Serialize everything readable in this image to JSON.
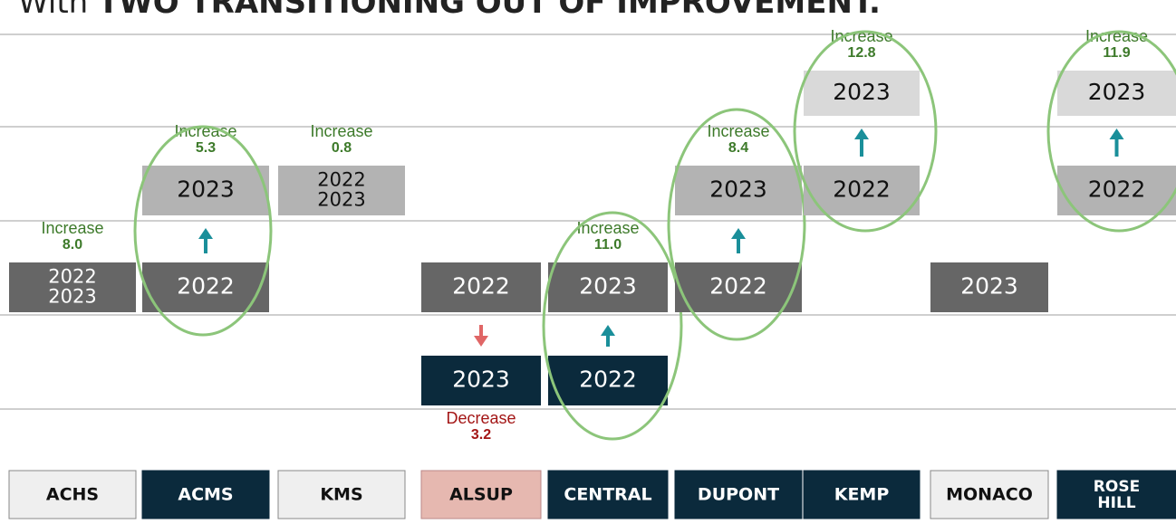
{
  "title": {
    "lead": "With",
    "bold": "TWO TRANSITIONING OUT OF IMPROVEMENT."
  },
  "schools": [
    {
      "name": "ACHS",
      "boxes": [
        [
          "2022",
          "2023"
        ]
      ],
      "change": {
        "label": "Increase",
        "value": "8.0"
      }
    },
    {
      "name": "ACMS",
      "boxes": [
        [
          "2023"
        ],
        [
          "2022"
        ]
      ],
      "change": {
        "label": "Increase",
        "value": "5.3"
      }
    },
    {
      "name": "KMS",
      "boxes": [
        [
          "2022",
          "2023"
        ]
      ],
      "change": {
        "label": "Increase",
        "value": "0.8"
      }
    },
    {
      "name": "ALSUP",
      "boxes": [
        [
          "2022"
        ],
        [
          "2023"
        ]
      ],
      "change": {
        "label": "Decrease",
        "value": "3.2"
      }
    },
    {
      "name": "CENTRAL",
      "boxes": [
        [
          "2023"
        ],
        [
          "2022"
        ]
      ],
      "change": {
        "label": "Increase",
        "value": "11.0"
      }
    },
    {
      "name": "DUPONT",
      "boxes": [
        [
          "2023"
        ],
        [
          "2022"
        ]
      ],
      "change": {
        "label": "Increase",
        "value": "8.4"
      }
    },
    {
      "name": "KEMP",
      "boxes": [
        [
          "2023"
        ],
        [
          "2022"
        ]
      ],
      "change": {
        "label": "Increase",
        "value": "12.8"
      }
    },
    {
      "name": "MONACO",
      "boxes": [
        [
          "2023"
        ]
      ]
    },
    {
      "name": [
        "ROSE",
        "HILL"
      ],
      "boxes": [
        [
          "2023"
        ],
        [
          "2022"
        ]
      ],
      "change": {
        "label": "Increase",
        "value": "11.9"
      }
    }
  ]
}
